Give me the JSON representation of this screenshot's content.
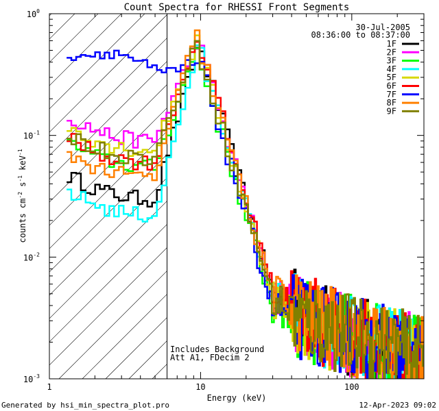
{
  "chart_data": {
    "type": "line",
    "title": "Count Spectra for RHESSI Front Segments",
    "xlabel": "Energy (keV)",
    "ylabel_parts": [
      "counts cm",
      "-2",
      " s",
      "-1",
      " keV",
      "-1"
    ],
    "xscale": "log",
    "yscale": "log",
    "xlim": [
      1,
      300
    ],
    "ylim": [
      0.001,
      1
    ],
    "x_ticks": [
      {
        "value": 1,
        "label": "1"
      },
      {
        "value": 10,
        "label": "10"
      },
      {
        "value": 100,
        "label": "100"
      }
    ],
    "y_ticks": [
      {
        "value": 0.001,
        "base": "10",
        "exp": "-3"
      },
      {
        "value": 0.01,
        "base": "10",
        "exp": "-2"
      },
      {
        "value": 0.1,
        "base": "10",
        "exp": "-1"
      },
      {
        "value": 1,
        "base": "10",
        "exp": "0"
      }
    ],
    "date_text": "30-Jul-2005",
    "time_text": "08:36:00 to 08:37:00",
    "legend_placement": "top-right",
    "attenuator_energy_keV": 6,
    "hatch_region": "energies below the attenuator line",
    "annotation_lines": [
      "Includes Background",
      "Att A1, FDecim 2"
    ],
    "footer_left": "Generated by hsi_min_spectra_plot.pro",
    "footer_right": "12-Apr-2023 09:02",
    "series": [
      {
        "name": "1F",
        "color": "#000000",
        "low_level": 0.03,
        "peak": 0.58,
        "peak_e": 9.8
      },
      {
        "name": "2F",
        "color": "#ff00ff",
        "low_level": 0.09,
        "peak": 0.62,
        "peak_e": 9.6
      },
      {
        "name": "3F",
        "color": "#00ff00",
        "low_level": 0.055,
        "peak": 0.52,
        "peak_e": 9.4
      },
      {
        "name": "4F",
        "color": "#00ffff",
        "low_level": 0.022,
        "peak": 0.55,
        "peak_e": 9.7
      },
      {
        "name": "5F",
        "color": "#d8d800",
        "low_level": 0.075,
        "peak": 0.6,
        "peak_e": 9.5
      },
      {
        "name": "6F",
        "color": "#ff0000",
        "low_level": 0.06,
        "peak": 0.66,
        "peak_e": 9.6
      },
      {
        "name": "7F",
        "color": "#0000ff",
        "low_level": 0.3,
        "peak": 0.4,
        "peak_e": 10.0
      },
      {
        "name": "8F",
        "color": "#ff8000",
        "low_level": 0.045,
        "peak": 0.7,
        "peak_e": 9.3
      },
      {
        "name": "9F",
        "color": "#808000",
        "low_level": 0.065,
        "peak": 0.58,
        "peak_e": 9.5
      }
    ]
  }
}
